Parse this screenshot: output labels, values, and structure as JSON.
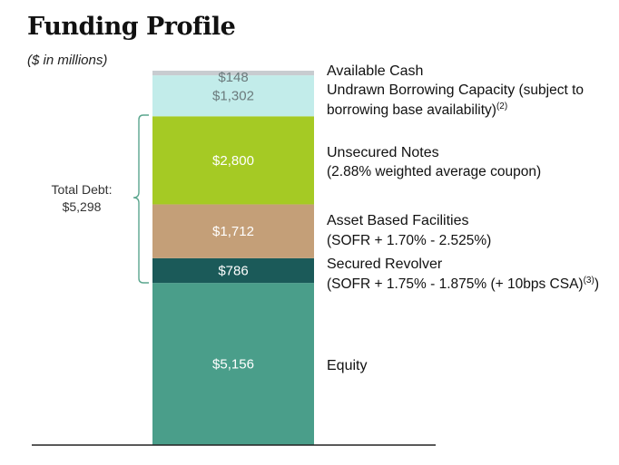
{
  "header": {
    "title": "Funding Profile",
    "subtitle": "($ in millions)"
  },
  "brace": {
    "label_line1": "Total Debt:",
    "label_line2": "$5,298"
  },
  "chart_data": {
    "type": "bar",
    "stacked": true,
    "series": [
      {
        "name": "Equity",
        "value": 5156,
        "label": "$5,156",
        "color": "#4a9e8a"
      },
      {
        "name": "Secured Revolver",
        "value": 786,
        "label": "$786",
        "color": "#1b5a59"
      },
      {
        "name": "Asset Based Facilities",
        "value": 1712,
        "label": "$1,712",
        "color": "#c49f78"
      },
      {
        "name": "Unsecured Notes",
        "value": 2800,
        "label": "$2,800",
        "color": "#a5ca24"
      },
      {
        "name": "Undrawn Borrowing Capacity",
        "value": 1302,
        "label": "$1,302",
        "color": "#c2ecea"
      },
      {
        "name": "Available Cash",
        "value": 148,
        "label": "$148",
        "color": "#c8ccd0"
      }
    ],
    "total_debt": 5298
  },
  "legend": {
    "available_cash": {
      "title": "Available Cash"
    },
    "undrawn": {
      "title": "Undrawn Borrowing Capacity",
      "title_suffix": " (subject to",
      "sub": "borrowing base availability)",
      "sub_note": "(2)"
    },
    "unsecured": {
      "title": "Unsecured Notes",
      "sub": "(2.88% weighted average coupon)"
    },
    "abf": {
      "title": "Asset Based Facilities",
      "sub": "(SOFR + 1.70% - 2.525%)"
    },
    "revolver": {
      "title": "Secured Revolver",
      "sub": "(SOFR + 1.75% - 1.875% (+ 10bps CSA)",
      "sub_note": "(3)",
      "sub_end": ")"
    },
    "equity": {
      "title": "Equity"
    }
  }
}
